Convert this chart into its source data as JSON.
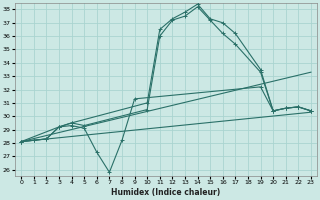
{
  "xlabel": "Humidex (Indice chaleur)",
  "bg_color": "#cce8e4",
  "grid_color": "#aad4d0",
  "line_color": "#2a7068",
  "xlim": [
    -0.5,
    23.5
  ],
  "ylim": [
    25.5,
    38.5
  ],
  "xticks": [
    0,
    1,
    2,
    3,
    4,
    5,
    6,
    7,
    8,
    9,
    10,
    11,
    12,
    13,
    14,
    15,
    16,
    17,
    18,
    19,
    20,
    21,
    22,
    23
  ],
  "yticks": [
    26,
    27,
    28,
    29,
    30,
    31,
    32,
    33,
    34,
    35,
    36,
    37,
    38
  ],
  "lines": [
    {
      "x": [
        0,
        1,
        2,
        3,
        4,
        5,
        6,
        7,
        8,
        9,
        19,
        20,
        21,
        22,
        23
      ],
      "y": [
        28.1,
        28.2,
        28.3,
        29.2,
        29.3,
        29.1,
        27.3,
        25.8,
        28.2,
        31.3,
        32.2,
        30.4,
        30.6,
        30.7,
        30.4
      ],
      "marker": true
    },
    {
      "x": [
        0,
        1,
        2,
        3,
        4,
        5,
        10,
        11,
        12,
        13,
        14,
        15,
        16,
        17,
        19,
        20,
        21,
        22,
        23
      ],
      "y": [
        28.1,
        28.2,
        28.3,
        29.2,
        29.5,
        29.3,
        30.5,
        36.0,
        37.2,
        37.5,
        38.2,
        37.2,
        36.2,
        35.4,
        33.3,
        30.4,
        30.6,
        30.7,
        30.4
      ],
      "marker": true
    },
    {
      "x": [
        0,
        3,
        4,
        10,
        11,
        12,
        13,
        14,
        15,
        16,
        17,
        19,
        20,
        21,
        22,
        23
      ],
      "y": [
        28.1,
        29.2,
        29.5,
        31.0,
        36.5,
        37.3,
        37.8,
        38.4,
        37.3,
        37.0,
        36.2,
        33.5,
        30.4,
        30.6,
        30.7,
        30.4
      ],
      "marker": true
    },
    {
      "x": [
        0,
        23
      ],
      "y": [
        28.1,
        30.3
      ],
      "marker": false
    },
    {
      "x": [
        0,
        23
      ],
      "y": [
        28.1,
        33.3
      ],
      "marker": false
    }
  ]
}
